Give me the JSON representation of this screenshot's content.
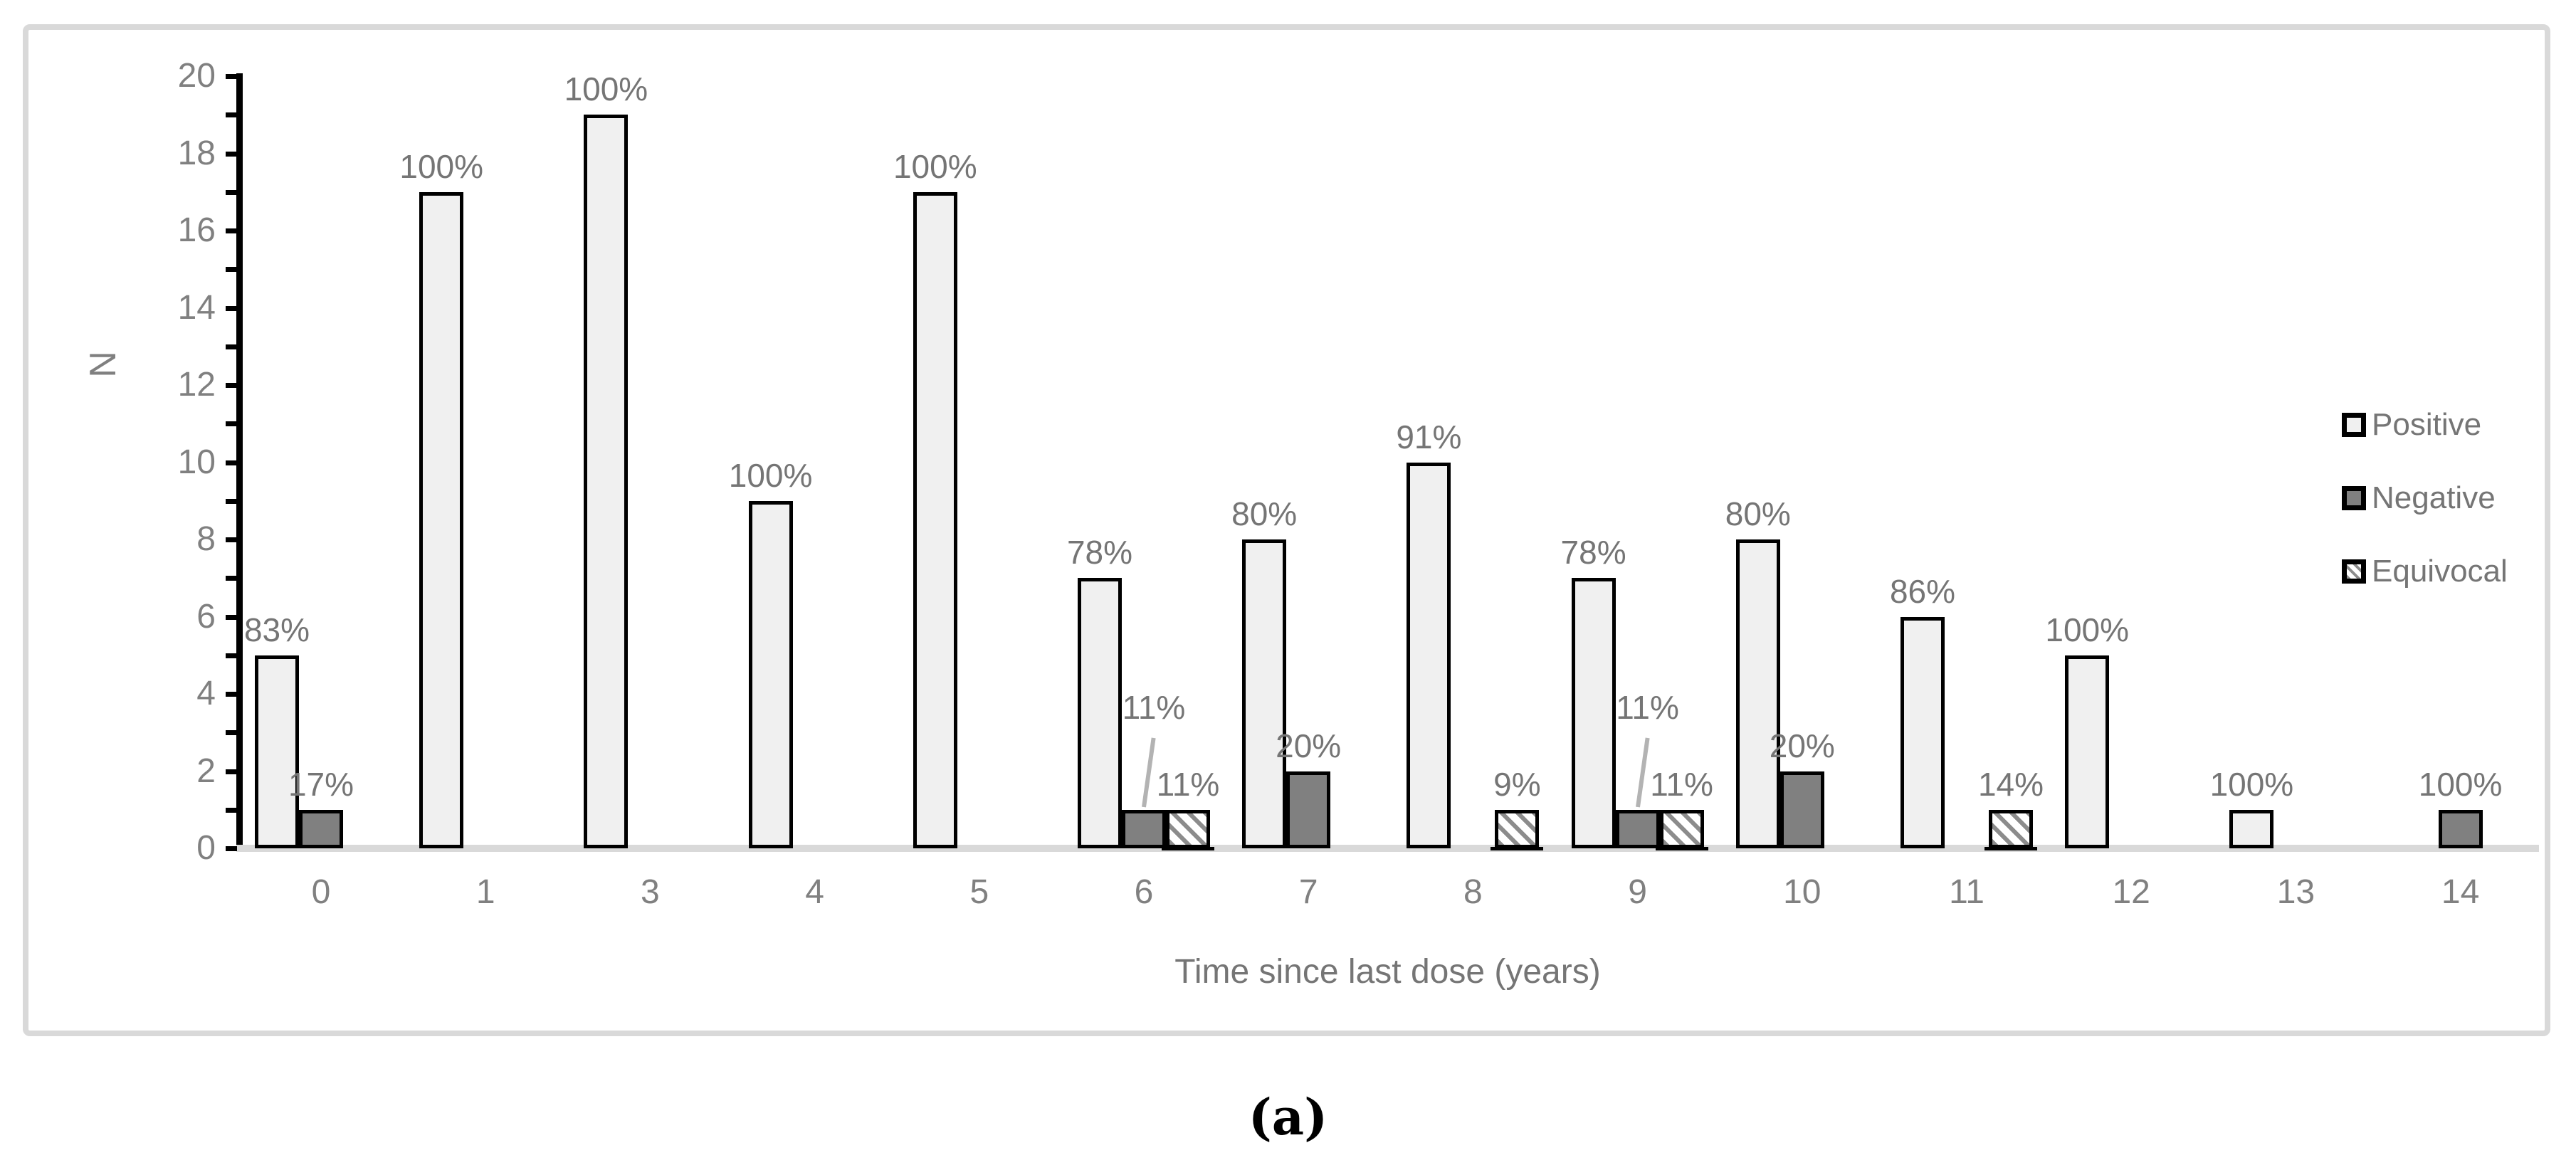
{
  "figure": {
    "caption": "(a)"
  },
  "chart_data": {
    "type": "bar",
    "title": "",
    "xlabel": "Time since last dose (years)",
    "ylabel": "N",
    "ylim": [
      0,
      20
    ],
    "yticks": [
      0,
      2,
      4,
      6,
      8,
      10,
      12,
      14,
      16,
      18,
      20
    ],
    "minor_tick_step": 1,
    "grid": "off",
    "legend_position": "right",
    "categories": [
      "0",
      "1",
      "3",
      "4",
      "5",
      "6",
      "7",
      "8",
      "9",
      "10",
      "11",
      "12",
      "13",
      "14"
    ],
    "series": [
      {
        "name": "Positive",
        "style": "light",
        "values": [
          5,
          17,
          19,
          9,
          17,
          7,
          8,
          10,
          7,
          8,
          6,
          5,
          1,
          0
        ],
        "labels": [
          "83%",
          "100%",
          "100%",
          "100%",
          "100%",
          "78%",
          "80%",
          "91%",
          "78%",
          "80%",
          "86%",
          "100%",
          "100%",
          ""
        ]
      },
      {
        "name": "Negative",
        "style": "dark",
        "values": [
          1,
          0,
          0,
          0,
          0,
          1,
          2,
          0,
          1,
          2,
          0,
          0,
          0,
          1
        ],
        "labels": [
          "17%",
          "",
          "",
          "",
          "",
          "11%",
          "20%",
          "",
          "11%",
          "20%",
          "",
          "",
          "",
          "100%"
        ],
        "leader_categories": [
          "6",
          "9"
        ]
      },
      {
        "name": "Equivocal",
        "style": "hatch",
        "values": [
          0,
          0,
          0,
          0,
          0,
          1,
          0,
          1,
          1,
          0,
          1,
          0,
          0,
          0
        ],
        "labels": [
          "",
          "",
          "",
          "",
          "",
          "11%",
          "",
          "9%",
          "11%",
          "",
          "14%",
          "",
          "",
          ""
        ]
      }
    ],
    "colors": {
      "positive_fill": "#f0f0f0",
      "negative_fill": "#808080",
      "equivocal_hatch": "#8c8c8c",
      "bar_border": "#000000",
      "baseline": "#d9d9d9",
      "frame_border": "#d9d9d9",
      "label_text": "#757575",
      "tick_text": "#808080",
      "leader_line": "#b3b3b3"
    }
  }
}
